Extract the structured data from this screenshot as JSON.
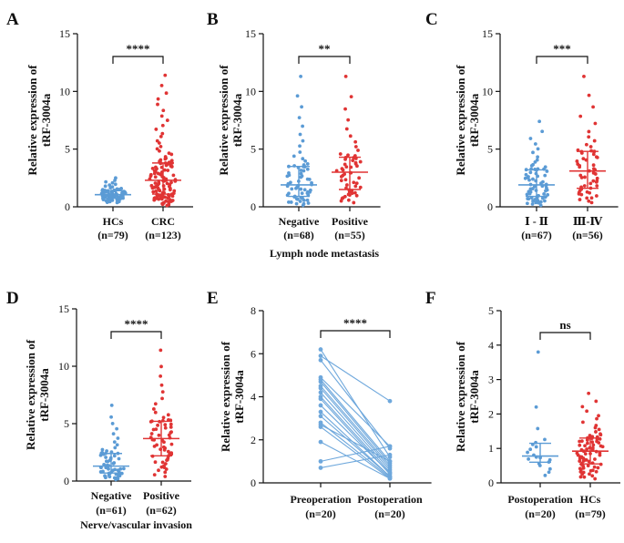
{
  "colors": {
    "blue": "#5B9BD5",
    "red": "#E03434",
    "pairline": "#6FA8DC",
    "axis": "#111111"
  },
  "chart_data": [
    {
      "panel": "A",
      "type": "scatter",
      "ylabel": "Relative expression of tRF-3004a",
      "ylim": [
        0,
        15
      ],
      "yticks": [
        0,
        5,
        10,
        15
      ],
      "xlabel": "",
      "groups": [
        {
          "name": "HCs",
          "n": "(n=79)",
          "color": "blue",
          "count": 79,
          "median": 1.05,
          "q1": 0.75,
          "q3": 1.4,
          "min": 0.35,
          "max": 2.5
        },
        {
          "name": "CRC",
          "n": "(n=123)",
          "color": "red",
          "count": 123,
          "median": 2.3,
          "q1": 1.1,
          "q3": 3.8,
          "min": 0.1,
          "max": 11.4
        }
      ],
      "significance": "****"
    },
    {
      "panel": "B",
      "type": "scatter",
      "ylabel": "Relative expression of tRF-3004a",
      "ylim": [
        0,
        15
      ],
      "yticks": [
        0,
        5,
        10,
        15
      ],
      "xlabel": "Lymph node metastasis",
      "groups": [
        {
          "name": "Negative",
          "n": "(n=68)",
          "color": "blue",
          "count": 68,
          "median": 1.9,
          "q1": 0.9,
          "q3": 3.5,
          "min": 0.1,
          "max": 11.3
        },
        {
          "name": "Positive",
          "n": "(n=55)",
          "color": "red",
          "count": 55,
          "median": 3.0,
          "q1": 1.5,
          "q3": 4.3,
          "min": 0.3,
          "max": 11.3
        }
      ],
      "significance": "**"
    },
    {
      "panel": "C",
      "type": "scatter",
      "ylabel": "Relative expression of tRF-3004a",
      "ylim": [
        0,
        15
      ],
      "yticks": [
        0,
        5,
        10,
        15
      ],
      "xlabel": "",
      "groups": [
        {
          "name": "Ⅰ - Ⅱ",
          "n": "(n=67)",
          "color": "blue",
          "count": 67,
          "median": 1.9,
          "q1": 0.9,
          "q3": 3.2,
          "min": 0.1,
          "max": 7.4
        },
        {
          "name": "Ⅲ-Ⅳ",
          "n": "(n=56)",
          "color": "red",
          "count": 56,
          "median": 3.1,
          "q1": 1.6,
          "q3": 4.8,
          "min": 0.3,
          "max": 11.3
        }
      ],
      "significance": "***"
    },
    {
      "panel": "D",
      "type": "scatter",
      "ylabel": "Relative expression of tRF-3004a",
      "ylim": [
        0,
        15
      ],
      "yticks": [
        0,
        5,
        10,
        15
      ],
      "xlabel": "Nerve/vascular invasion",
      "groups": [
        {
          "name": "Negative",
          "n": "(n=61)",
          "color": "blue",
          "count": 61,
          "median": 1.3,
          "q1": 0.7,
          "q3": 2.4,
          "min": 0.1,
          "max": 6.6
        },
        {
          "name": "Positive",
          "n": "(n=62)",
          "color": "red",
          "count": 62,
          "median": 3.7,
          "q1": 2.2,
          "q3": 5.2,
          "min": 0.3,
          "max": 11.4
        }
      ],
      "significance": "****"
    },
    {
      "panel": "E",
      "type": "line",
      "ylabel": "Relative expression of tRF-3004a",
      "ylim": [
        0,
        8
      ],
      "yticks": [
        0,
        2,
        4,
        6,
        8
      ],
      "xlabel": "",
      "categories": [
        {
          "name": "Preoperation",
          "n": "(n=20)"
        },
        {
          "name": "Postoperation",
          "n": "(n=20)"
        }
      ],
      "pairs": [
        [
          6.2,
          1.2
        ],
        [
          5.9,
          3.8
        ],
        [
          5.7,
          1.6
        ],
        [
          4.9,
          1.7
        ],
        [
          4.8,
          1.0
        ],
        [
          4.7,
          0.9
        ],
        [
          4.5,
          0.8
        ],
        [
          4.2,
          0.6
        ],
        [
          4.0,
          0.5
        ],
        [
          3.9,
          0.4
        ],
        [
          3.6,
          0.45
        ],
        [
          3.3,
          0.3
        ],
        [
          3.1,
          0.3
        ],
        [
          2.8,
          0.25
        ],
        [
          2.6,
          0.2
        ],
        [
          1.9,
          0.2
        ],
        [
          1.0,
          1.7
        ],
        [
          0.7,
          1.3
        ],
        [
          2.7,
          1.0
        ],
        [
          4.4,
          0.7
        ]
      ],
      "significance": "****"
    },
    {
      "panel": "F",
      "type": "scatter",
      "ylabel": "Relative expression of tRF-3004a",
      "ylim": [
        0,
        5
      ],
      "yticks": [
        0,
        1,
        2,
        3,
        4,
        5
      ],
      "xlabel": "",
      "groups": [
        {
          "name": "Postoperation",
          "n": "(n=20)",
          "color": "blue",
          "count": 20,
          "median": 0.78,
          "q1": 0.6,
          "q3": 1.15,
          "min": 0.15,
          "max": 3.8
        },
        {
          "name": "HCs",
          "n": "(n=79)",
          "color": "red",
          "count": 79,
          "median": 0.92,
          "q1": 0.55,
          "q3": 1.3,
          "min": 0.1,
          "max": 2.6
        }
      ],
      "significance": "ns"
    }
  ]
}
